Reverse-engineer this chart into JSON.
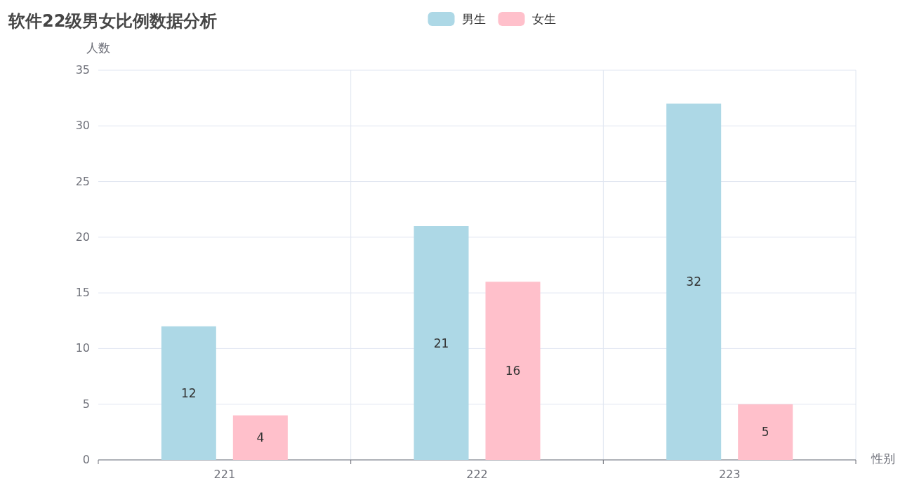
{
  "chart_data": {
    "type": "bar",
    "title": "软件22级男女比例数据分析",
    "xlabel": "性别",
    "ylabel": "人数",
    "categories": [
      "221",
      "222",
      "223"
    ],
    "series": [
      {
        "name": "男生",
        "color": "#add8e6",
        "values": [
          12,
          21,
          32
        ]
      },
      {
        "name": "女生",
        "color": "#ffc0cb",
        "values": [
          4,
          16,
          5
        ]
      }
    ],
    "ylim": [
      0,
      35
    ],
    "yticks": [
      0,
      5,
      10,
      15,
      20,
      25,
      30,
      35
    ],
    "grid": true,
    "legend": "top",
    "data_labels": true
  }
}
